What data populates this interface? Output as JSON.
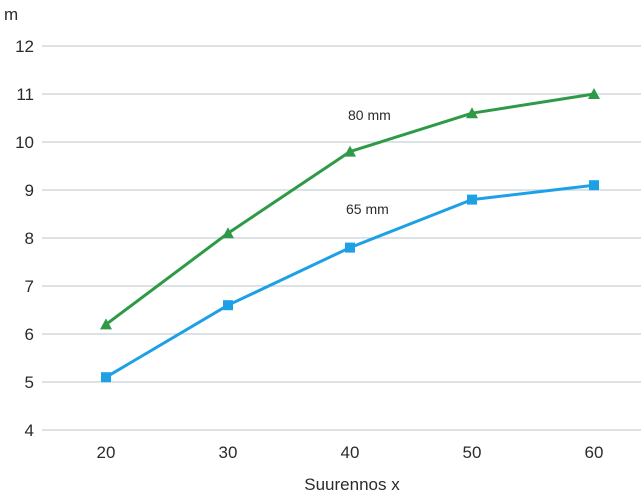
{
  "chart_data": {
    "type": "line",
    "ylabel": "m",
    "xlabel": "Suurennos x",
    "x": [
      20,
      30,
      40,
      50,
      60
    ],
    "ylim": [
      4,
      12
    ],
    "yticks": [
      4,
      5,
      6,
      7,
      8,
      9,
      10,
      11,
      12
    ],
    "grid": "horizontal",
    "series": [
      {
        "name": "80 mm",
        "values": [
          6.2,
          8.1,
          9.8,
          10.6,
          11.0
        ],
        "color": "#2e9a48",
        "marker": "triangle"
      },
      {
        "name": "65 mm",
        "values": [
          5.1,
          6.6,
          7.8,
          8.8,
          9.1
        ],
        "color": "#1ea0e6",
        "marker": "square"
      }
    ]
  }
}
